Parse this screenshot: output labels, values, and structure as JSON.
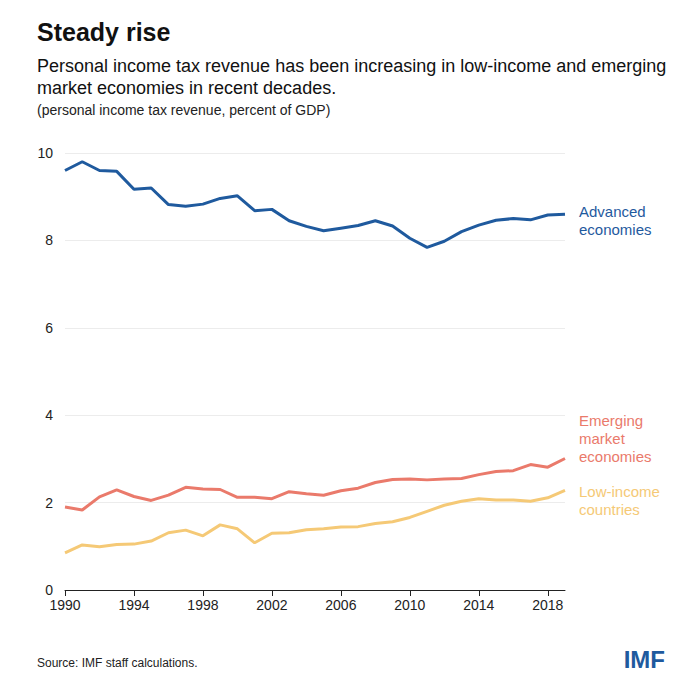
{
  "chart_data": {
    "type": "line",
    "title": "Steady rise",
    "subtitle": "Personal income tax revenue has been increasing in low-income and emerging market economies in recent decades.",
    "ylabel": "(personal income tax revenue, percent of GDP)",
    "source": "Source: IMF staff calculations.",
    "brand": "IMF",
    "x": [
      1990,
      1991,
      1992,
      1993,
      1994,
      1995,
      1996,
      1997,
      1998,
      1999,
      2000,
      2001,
      2002,
      2003,
      2004,
      2005,
      2006,
      2007,
      2008,
      2009,
      2010,
      2011,
      2012,
      2013,
      2014,
      2015,
      2016,
      2017,
      2018,
      2019
    ],
    "series": [
      {
        "name": "Advanced economies",
        "color": "#1f5a9e",
        "values": [
          9.6,
          9.8,
          9.6,
          9.58,
          9.17,
          9.2,
          8.82,
          8.78,
          8.83,
          8.96,
          9.02,
          8.68,
          8.71,
          8.45,
          8.32,
          8.22,
          8.28,
          8.34,
          8.45,
          8.33,
          8.05,
          7.84,
          7.98,
          8.2,
          8.35,
          8.46,
          8.5,
          8.47,
          8.58,
          8.6
        ]
      },
      {
        "name": "Emerging market economies",
        "color": "#ea7a6b",
        "values": [
          1.9,
          1.83,
          2.13,
          2.29,
          2.14,
          2.05,
          2.17,
          2.35,
          2.31,
          2.3,
          2.12,
          2.12,
          2.09,
          2.25,
          2.2,
          2.17,
          2.27,
          2.33,
          2.46,
          2.53,
          2.54,
          2.52,
          2.54,
          2.55,
          2.64,
          2.71,
          2.73,
          2.87,
          2.81,
          3.01
        ]
      },
      {
        "name": "Low-income countries",
        "color": "#f5c976",
        "values": [
          0.85,
          1.03,
          0.99,
          1.04,
          1.05,
          1.12,
          1.31,
          1.37,
          1.24,
          1.49,
          1.4,
          1.08,
          1.3,
          1.31,
          1.38,
          1.4,
          1.44,
          1.45,
          1.52,
          1.56,
          1.66,
          1.8,
          1.94,
          2.03,
          2.09,
          2.06,
          2.06,
          2.03,
          2.11,
          2.28
        ]
      }
    ],
    "xlim": [
      1990,
      2019
    ],
    "xticks": [
      1990,
      1994,
      1998,
      2002,
      2006,
      2010,
      2014,
      2018
    ],
    "ylim": [
      0,
      10
    ],
    "yticks": [
      0,
      2,
      4,
      6,
      8,
      10
    ],
    "grid": true
  }
}
